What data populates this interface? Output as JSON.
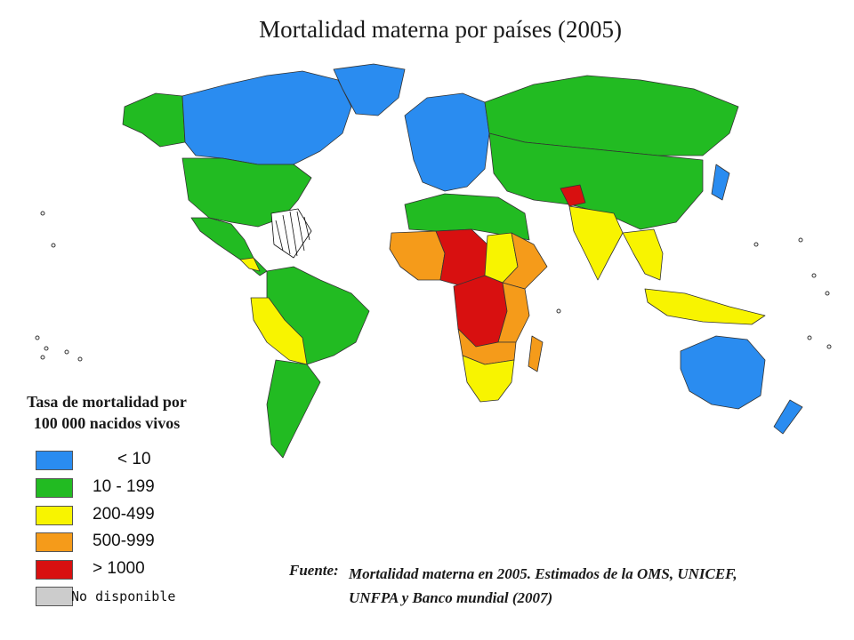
{
  "title": "Mortalidad materna por países (2005)",
  "legend": {
    "title_line1": "Tasa de mortalidad por",
    "title_line2": "100 000 nacidos vivos",
    "items": [
      {
        "label": "< 10",
        "color": "#2a8cf0"
      },
      {
        "label": "10 - 199",
        "color": "#22bb22"
      },
      {
        "label": "200-499",
        "color": "#f8f400"
      },
      {
        "label": "500-999",
        "color": "#f59b1a"
      },
      {
        "label": "> 1000",
        "color": "#d81010"
      },
      {
        "label": "No disponible",
        "color": "#cccccc"
      }
    ]
  },
  "source": {
    "label": "Fuente:",
    "line1": "Mortalidad materna en 2005. Estimados de la OMS, UNICEF,",
    "line2": "UNFPA y Banco mundial (2007)"
  },
  "colors": {
    "lt10": "#2a8cf0",
    "r10_199": "#22bb22",
    "r200_499": "#f8f400",
    "r500_999": "#f59b1a",
    "ge1000": "#d81010",
    "na": "#cccccc",
    "border": "#333333"
  }
}
